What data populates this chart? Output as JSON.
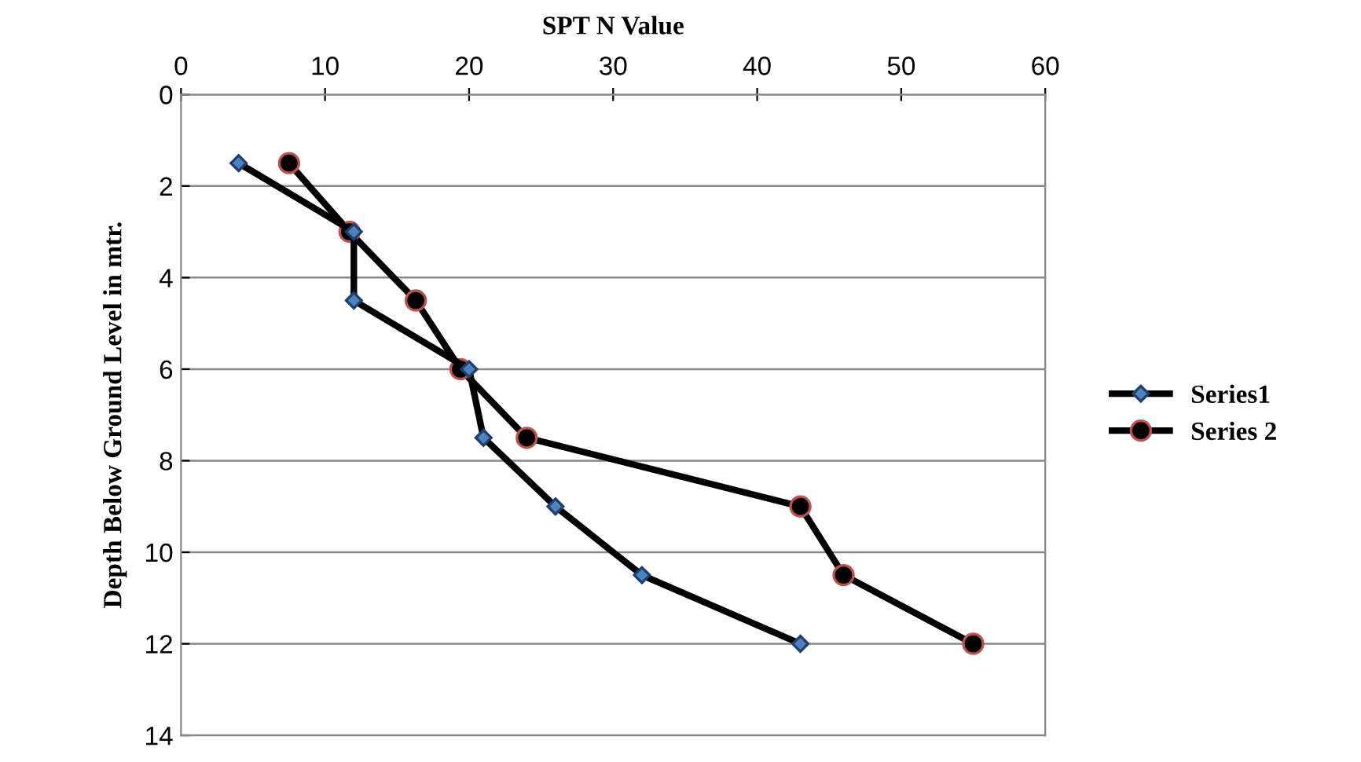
{
  "chart_data": {
    "type": "line",
    "xlabel": "SPT N Value",
    "ylabel": "Depth Below Ground Level in mtr.",
    "xlim": [
      0,
      60
    ],
    "xticks": [
      0,
      10,
      20,
      30,
      40,
      50,
      60
    ],
    "ylim": [
      14,
      0
    ],
    "yticks": [
      0,
      2,
      4,
      6,
      8,
      10,
      12,
      14
    ],
    "grid": "y",
    "legend": "right",
    "line_style": "solid",
    "series": [
      {
        "name": "Series1",
        "color": "#000000",
        "marker": "diamond",
        "x": [
          4,
          12,
          12,
          20,
          21,
          26,
          32,
          43
        ],
        "values": [
          1.5,
          3,
          4.5,
          6,
          7.5,
          9,
          10.5,
          12
        ]
      },
      {
        "name": "Series 2",
        "color": "#000000",
        "marker": "circle",
        "x": [
          7.5,
          11.7,
          16.3,
          19.4,
          24,
          43,
          46,
          55
        ],
        "values": [
          1.5,
          3,
          4.5,
          6,
          7.5,
          9,
          10.5,
          12
        ]
      }
    ]
  }
}
